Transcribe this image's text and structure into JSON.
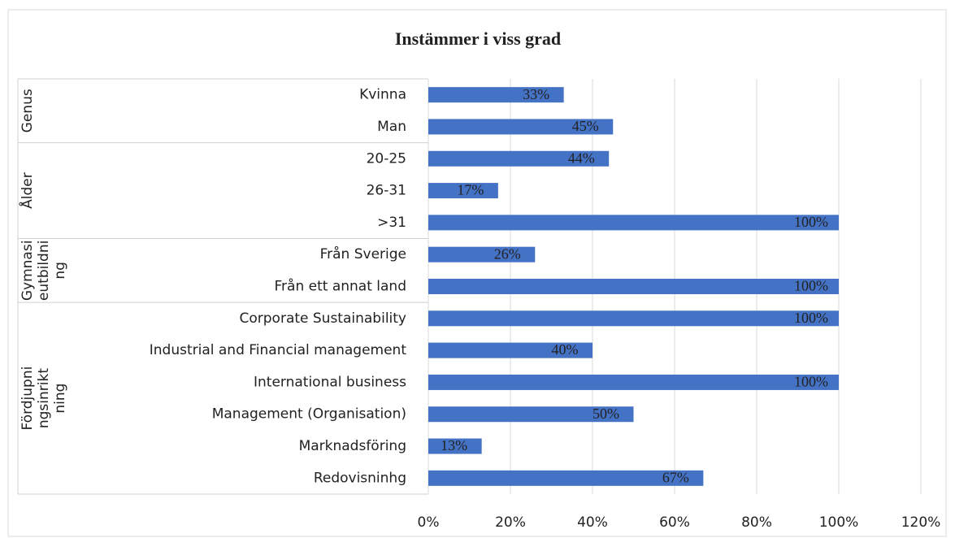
{
  "chart_data": {
    "type": "bar",
    "orientation": "horizontal",
    "title": "Instämmer i viss grad",
    "groups": [
      {
        "label": "Genus",
        "categories": [
          "Kvinna",
          "Man"
        ]
      },
      {
        "label": "Ålder",
        "categories": [
          "20-25",
          "26-31",
          ">31"
        ]
      },
      {
        "label": "Gymnasieutbildning",
        "categories": [
          "Från Sverige",
          "Från ett annat land"
        ]
      },
      {
        "label": "Fördjupningsinriktning",
        "categories": [
          "Corporate Sustainability",
          "Industrial and Financial management",
          "International business",
          "Management (Organisation)",
          "Marknadsföring",
          "Redovisninhg"
        ]
      }
    ],
    "values": [
      33,
      45,
      44,
      17,
      100,
      26,
      100,
      100,
      40,
      100,
      50,
      13,
      67
    ],
    "value_labels": [
      "33%",
      "45%",
      "44%",
      "17%",
      "100%",
      "26%",
      "100%",
      "100%",
      "40%",
      "100%",
      "50%",
      "13%",
      "67%"
    ],
    "color": "#4472c4",
    "xlim": [
      0,
      120
    ],
    "xticks": [
      {
        "value": 0,
        "label": "0%"
      },
      {
        "value": 20,
        "label": "20%"
      },
      {
        "value": 40,
        "label": "40%"
      },
      {
        "value": 60,
        "label": "60%"
      },
      {
        "value": 80,
        "label": "80%"
      },
      {
        "value": 100,
        "label": "100%"
      },
      {
        "value": 120,
        "label": "120%"
      }
    ],
    "grid": true
  }
}
